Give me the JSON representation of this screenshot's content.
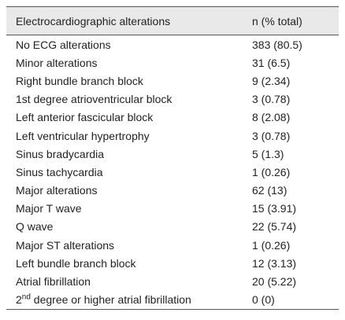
{
  "table": {
    "header": [
      "Electrocardiographic alterations",
      "n (% total)"
    ],
    "rows": [
      [
        "No ECG alterations",
        "383 (80.5)"
      ],
      [
        "Minor alterations",
        "31 (6.5)"
      ],
      [
        "Right bundle branch block",
        "9 (2.34)"
      ],
      [
        "1st degree atrioventricular block",
        "3 (0.78)"
      ],
      [
        "Left anterior fascicular block",
        "8 (2.08)"
      ],
      [
        "Left ventricular hypertrophy",
        "3 (0.78)"
      ],
      [
        "Sinus bradycardia",
        "5 (1.3)"
      ],
      [
        "Sinus tachycardia",
        "1 (0.26)"
      ],
      [
        "Major alterations",
        "62 (13)"
      ],
      [
        "Major T wave",
        "15 (3.91)"
      ],
      [
        "Q wave",
        "22 (5.74)"
      ],
      [
        "Major ST alterations",
        "1 (0.26)"
      ],
      [
        "Left bundle branch block",
        "12 (3.13)"
      ],
      [
        "Atrial fibrillation",
        "20 (5.22)"
      ],
      [
        {
          "base": "2",
          "sup": "nd",
          "rest": " degree or higher atrial fibrillation"
        },
        "0 (0)"
      ]
    ]
  }
}
